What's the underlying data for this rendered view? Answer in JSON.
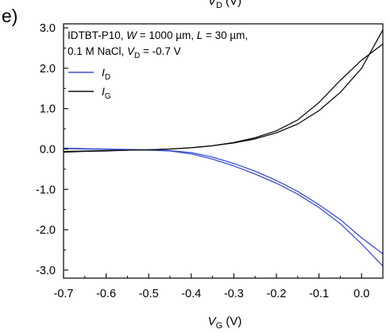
{
  "panel_label": "e)",
  "top_cut_label": {
    "prefix": "V",
    "sub": "D",
    "suffix": " (V)"
  },
  "annotation": {
    "line1_parts": [
      {
        "text": "IDTBT-P10, ",
        "style": "normal"
      },
      {
        "text": "W",
        "style": "italic"
      },
      {
        "text": " = 1000 µm, ",
        "style": "normal"
      },
      {
        "text": "L",
        "style": "italic"
      },
      {
        "text": " = 30 µm,",
        "style": "normal"
      }
    ],
    "line2_parts": [
      {
        "text": "0.1 M NaCl, ",
        "style": "normal"
      },
      {
        "text": "V",
        "style": "italic"
      },
      {
        "text": "D",
        "style": "sub"
      },
      {
        "text": " = -0.7 V",
        "style": "normal"
      }
    ]
  },
  "chart_data": {
    "type": "line",
    "xlabel": {
      "prefix": "V",
      "sub": "G",
      "suffix": " (V)"
    },
    "ylabel": "",
    "xlim": [
      -0.7,
      0.05
    ],
    "ylim": [
      -3.2,
      3.1
    ],
    "x_ticks": [
      -0.7,
      -0.6,
      -0.5,
      -0.4,
      -0.3,
      -0.2,
      -0.1,
      0.0
    ],
    "x_tick_labels": [
      "-0.7",
      "-0.6",
      "-0.5",
      "-0.4",
      "-0.3",
      "-0.2",
      "-0.1",
      "0.0"
    ],
    "y_ticks": [
      3.0,
      2.0,
      1.0,
      0.0,
      -1.0,
      -2.0,
      -3.0
    ],
    "y_tick_labels": [
      "3.0",
      "2.0",
      "1.0",
      "0.0",
      "-1.0",
      "-2.0",
      "-3.0"
    ],
    "grid": false,
    "legend_position": "top-left",
    "series": [
      {
        "name": "I",
        "name_sub": "D",
        "color": "#3b4fd8",
        "sweeps": [
          {
            "x": [
              -0.7,
              -0.65,
              -0.6,
              -0.55,
              -0.5,
              -0.45,
              -0.4,
              -0.35,
              -0.3,
              -0.25,
              -0.2,
              -0.15,
              -0.1,
              -0.05,
              0.0,
              0.05
            ],
            "y": [
              0.01,
              0.0,
              -0.01,
              -0.02,
              -0.03,
              -0.05,
              -0.12,
              -0.25,
              -0.42,
              -0.62,
              -0.85,
              -1.12,
              -1.45,
              -1.85,
              -2.35,
              -2.9
            ]
          },
          {
            "x": [
              0.05,
              0.0,
              -0.05,
              -0.1,
              -0.15,
              -0.2,
              -0.25,
              -0.3,
              -0.35,
              -0.4,
              -0.45,
              -0.5,
              -0.55,
              -0.6,
              -0.65,
              -0.7
            ],
            "y": [
              -2.6,
              -2.2,
              -1.75,
              -1.38,
              -1.05,
              -0.78,
              -0.55,
              -0.36,
              -0.2,
              -0.09,
              -0.04,
              -0.02,
              -0.01,
              0.0,
              0.01,
              0.02
            ]
          }
        ]
      },
      {
        "name": "I",
        "name_sub": "G",
        "color": "#111111",
        "sweeps": [
          {
            "x": [
              -0.7,
              -0.65,
              -0.6,
              -0.55,
              -0.5,
              -0.45,
              -0.4,
              -0.35,
              -0.3,
              -0.25,
              -0.2,
              -0.15,
              -0.1,
              -0.05,
              0.0,
              0.05
            ],
            "y": [
              -0.08,
              -0.06,
              -0.05,
              -0.03,
              -0.02,
              0.0,
              0.03,
              0.08,
              0.15,
              0.25,
              0.4,
              0.62,
              0.95,
              1.4,
              2.0,
              2.95
            ]
          },
          {
            "x": [
              0.05,
              0.0,
              -0.05,
              -0.1,
              -0.15,
              -0.2,
              -0.25,
              -0.3,
              -0.35,
              -0.4,
              -0.45,
              -0.5,
              -0.55,
              -0.6,
              -0.65,
              -0.7
            ],
            "y": [
              2.6,
              2.2,
              1.7,
              1.15,
              0.72,
              0.45,
              0.28,
              0.16,
              0.08,
              0.03,
              0.0,
              -0.02,
              -0.03,
              -0.04,
              -0.05,
              -0.06
            ]
          }
        ]
      }
    ]
  }
}
